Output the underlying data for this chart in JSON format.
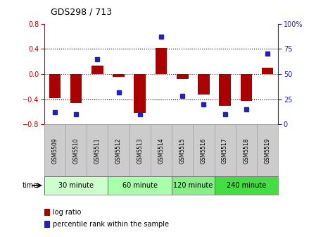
{
  "title": "GDS298 / 713",
  "samples": [
    "GSM5509",
    "GSM5510",
    "GSM5511",
    "GSM5512",
    "GSM5513",
    "GSM5514",
    "GSM5515",
    "GSM5516",
    "GSM5517",
    "GSM5518",
    "GSM5519"
  ],
  "log_ratio": [
    -0.38,
    -0.46,
    0.13,
    -0.05,
    -0.62,
    0.41,
    -0.08,
    -0.33,
    -0.5,
    -0.43,
    0.1
  ],
  "percentile": [
    12,
    10,
    65,
    32,
    10,
    87,
    28,
    20,
    10,
    15,
    70
  ],
  "ylim_left": [
    -0.8,
    0.8
  ],
  "ylim_right": [
    0,
    100
  ],
  "yticks_left": [
    -0.8,
    -0.4,
    0.0,
    0.4,
    0.8
  ],
  "yticks_right": [
    0,
    25,
    50,
    75,
    100
  ],
  "ytick_labels_right": [
    "0",
    "25",
    "50",
    "75",
    "100%"
  ],
  "bar_color": "#AA0000",
  "dot_color": "#2222BB",
  "zero_line_color": "#CC0000",
  "grid_color": "#000000",
  "groups": [
    {
      "label": "30 minute",
      "start": 0,
      "end": 3,
      "color": "#CCFFCC"
    },
    {
      "label": "60 minute",
      "start": 3,
      "end": 6,
      "color": "#AAFFAA"
    },
    {
      "label": "120 minute",
      "start": 6,
      "end": 8,
      "color": "#88EE88"
    },
    {
      "label": "240 minute",
      "start": 8,
      "end": 11,
      "color": "#44DD44"
    }
  ],
  "time_label": "time",
  "legend_bar_label": "log ratio",
  "legend_dot_label": "percentile rank within the sample",
  "bg_color": "#FFFFFF",
  "sample_row_color": "#CCCCCC"
}
